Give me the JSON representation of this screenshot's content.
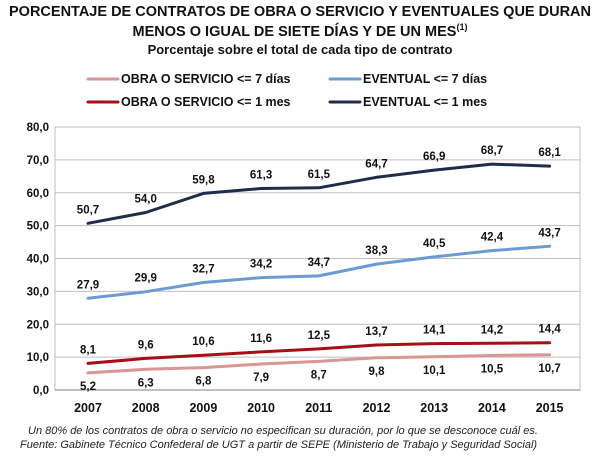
{
  "chart_data": {
    "type": "line",
    "title_line1": "PORCENTAJE DE CONTRATOS DE OBRA O SERVICIO Y EVENTUALES QUE DURAN",
    "title_line2": "MENOS O IGUAL DE SIETE DÍAS Y DE UN MES",
    "title_superscript": "(1)",
    "subtitle": "Porcentaje sobre el total de cada tipo de contrato",
    "categories": [
      "2007",
      "2008",
      "2009",
      "2010",
      "2011",
      "2012",
      "2013",
      "2014",
      "2015"
    ],
    "ylim": [
      0,
      80
    ],
    "yticks": [
      "0,0",
      "10,0",
      "20,0",
      "30,0",
      "40,0",
      "50,0",
      "60,0",
      "70,0",
      "80,0"
    ],
    "grid": true,
    "legend_position": "top",
    "series": [
      {
        "name": "OBRA O SERVICIO <= 7 días",
        "color": "#d99694",
        "values": [
          5.2,
          6.3,
          6.8,
          7.9,
          8.7,
          9.8,
          10.1,
          10.5,
          10.7
        ],
        "labels": [
          "5,2",
          "6,3",
          "6,8",
          "7,9",
          "8,7",
          "9,8",
          "10,1",
          "10,5",
          "10,7"
        ],
        "label_pos": "below"
      },
      {
        "name": "OBRA O SERVICIO <= 1 mes",
        "color": "#a50f15",
        "values": [
          8.1,
          9.6,
          10.6,
          11.6,
          12.5,
          13.7,
          14.1,
          14.2,
          14.4
        ],
        "labels": [
          "8,1",
          "9,6",
          "10,6",
          "11,6",
          "12,5",
          "13,7",
          "14,1",
          "14,2",
          "14,4"
        ],
        "label_pos": "above"
      },
      {
        "name": "EVENTUAL  <= 7 días",
        "color": "#6b9bd2",
        "values": [
          27.9,
          29.9,
          32.7,
          34.2,
          34.7,
          38.3,
          40.5,
          42.4,
          43.7
        ],
        "labels": [
          "27,9",
          "29,9",
          "32,7",
          "34,2",
          "34,7",
          "38,3",
          "40,5",
          "42,4",
          "43,7"
        ],
        "label_pos": "above"
      },
      {
        "name": "EVENTUAL <= 1 mes",
        "color": "#1f2d4a",
        "values": [
          50.7,
          54.0,
          59.8,
          61.3,
          61.5,
          64.7,
          66.9,
          68.7,
          68.1
        ],
        "labels": [
          "50,7",
          "54,0",
          "59,8",
          "61,3",
          "61,5",
          "64,7",
          "66,9",
          "68,7",
          "68,1"
        ],
        "label_pos": "above"
      }
    ],
    "footnote": "Un 80% de los contratos de obra o servicio no especifican su duración, por lo que se desconoce cuál es.",
    "source": "Fuente: Gabinete Técnico Confederal de UGT a partir de SEPE (Ministerio de Trabajo y Seguridad Social)"
  }
}
